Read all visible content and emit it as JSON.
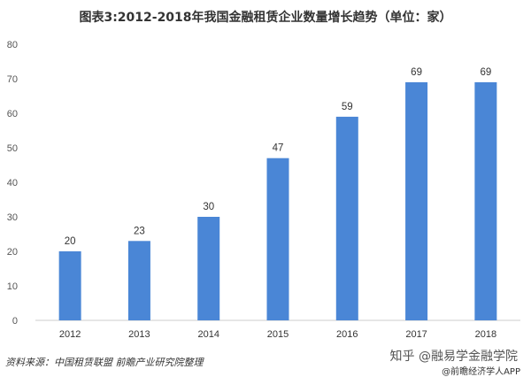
{
  "title": "图表3:2012-2018年我国金融租赁企业数量增长趋势（单位：家）",
  "chart_data": {
    "type": "bar",
    "title": "图表3:2012-2018年我国金融租赁企业数量增长趋势（单位：家）",
    "categories": [
      "2012",
      "2013",
      "2014",
      "2015",
      "2016",
      "2017",
      "2018"
    ],
    "values": [
      20,
      23,
      30,
      47,
      59,
      69,
      69
    ],
    "yticks": [
      "0",
      "10",
      "20",
      "30",
      "40",
      "50",
      "60",
      "70",
      "80"
    ],
    "ylim": [
      0,
      80
    ],
    "xlabel": "",
    "ylabel": "",
    "grid": false,
    "bar_color": "#4a86d6"
  },
  "footer": {
    "source": "资料来源：中国租赁联盟 前瞻产业研究院整理",
    "zhihu": "知乎 @融易学金融学院",
    "watermark": "@前瞻经济学人APP"
  }
}
